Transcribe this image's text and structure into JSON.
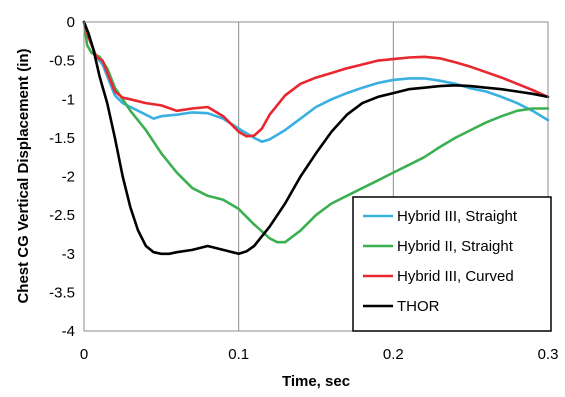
{
  "chart_data": {
    "type": "line",
    "title": "",
    "xlabel": "Time, sec",
    "ylabel": "Chest CG Vertical Displacement  (in)",
    "xlim": [
      0,
      0.3
    ],
    "ylim": [
      -4,
      0
    ],
    "xticks": [
      0,
      0.1,
      0.2,
      0.3
    ],
    "yticks": [
      0,
      -0.5,
      -1,
      -1.5,
      -2,
      -2.5,
      -3,
      -3.5,
      -4
    ],
    "xtick_labels": [
      "0",
      "0.1",
      "0.2",
      "0.3"
    ],
    "ytick_labels": [
      "0",
      "-0.5",
      "-1",
      "-1.5",
      "-2",
      "-2.5",
      "-3",
      "-3.5",
      "-4"
    ],
    "grid": "vertical",
    "legend_position": "bottom-right",
    "series": [
      {
        "name": "Hybrid III, Straight",
        "color": "#3ab0e2",
        "x": [
          0,
          0.003,
          0.008,
          0.012,
          0.016,
          0.02,
          0.025,
          0.03,
          0.035,
          0.04,
          0.045,
          0.05,
          0.06,
          0.07,
          0.08,
          0.09,
          0.1,
          0.11,
          0.115,
          0.12,
          0.13,
          0.14,
          0.15,
          0.16,
          0.17,
          0.18,
          0.19,
          0.2,
          0.21,
          0.22,
          0.23,
          0.24,
          0.25,
          0.26,
          0.27,
          0.28,
          0.29,
          0.3
        ],
        "y": [
          0,
          -0.2,
          -0.45,
          -0.55,
          -0.75,
          -0.95,
          -1.05,
          -1.1,
          -1.15,
          -1.2,
          -1.25,
          -1.22,
          -1.2,
          -1.17,
          -1.18,
          -1.25,
          -1.38,
          -1.5,
          -1.55,
          -1.52,
          -1.4,
          -1.25,
          -1.1,
          -1.0,
          -0.92,
          -0.85,
          -0.79,
          -0.75,
          -0.73,
          -0.73,
          -0.76,
          -0.8,
          -0.86,
          -0.9,
          -0.97,
          -1.05,
          -1.15,
          -1.27
        ]
      },
      {
        "name": "Hybrid II, Straight",
        "color": "#3cb050",
        "x": [
          0,
          0.002,
          0.005,
          0.01,
          0.015,
          0.02,
          0.025,
          0.03,
          0.04,
          0.05,
          0.06,
          0.07,
          0.08,
          0.09,
          0.1,
          0.11,
          0.12,
          0.125,
          0.13,
          0.14,
          0.15,
          0.16,
          0.17,
          0.18,
          0.19,
          0.2,
          0.21,
          0.22,
          0.23,
          0.24,
          0.25,
          0.26,
          0.27,
          0.28,
          0.29,
          0.3
        ],
        "y": [
          0,
          -0.3,
          -0.4,
          -0.45,
          -0.6,
          -0.85,
          -1.0,
          -1.15,
          -1.4,
          -1.7,
          -1.95,
          -2.15,
          -2.25,
          -2.3,
          -2.42,
          -2.62,
          -2.8,
          -2.85,
          -2.85,
          -2.7,
          -2.5,
          -2.35,
          -2.25,
          -2.15,
          -2.05,
          -1.95,
          -1.85,
          -1.75,
          -1.62,
          -1.5,
          -1.4,
          -1.3,
          -1.22,
          -1.15,
          -1.12,
          -1.12
        ]
      },
      {
        "name": "Hybrid III, Curved",
        "color": "#e8282e",
        "x": [
          0,
          0.003,
          0.008,
          0.012,
          0.016,
          0.02,
          0.025,
          0.03,
          0.04,
          0.05,
          0.06,
          0.07,
          0.08,
          0.09,
          0.1,
          0.105,
          0.11,
          0.115,
          0.12,
          0.13,
          0.14,
          0.15,
          0.16,
          0.17,
          0.18,
          0.19,
          0.2,
          0.21,
          0.22,
          0.23,
          0.24,
          0.25,
          0.26,
          0.27,
          0.28,
          0.29,
          0.3
        ],
        "y": [
          0,
          -0.2,
          -0.45,
          -0.5,
          -0.7,
          -0.9,
          -0.98,
          -1.0,
          -1.05,
          -1.08,
          -1.15,
          -1.12,
          -1.1,
          -1.22,
          -1.42,
          -1.48,
          -1.47,
          -1.38,
          -1.2,
          -0.95,
          -0.8,
          -0.72,
          -0.66,
          -0.6,
          -0.55,
          -0.5,
          -0.48,
          -0.46,
          -0.45,
          -0.47,
          -0.52,
          -0.58,
          -0.65,
          -0.72,
          -0.8,
          -0.88,
          -0.97
        ]
      },
      {
        "name": "THOR",
        "color": "#000000",
        "x": [
          0,
          0.003,
          0.006,
          0.01,
          0.015,
          0.02,
          0.025,
          0.03,
          0.035,
          0.04,
          0.045,
          0.05,
          0.055,
          0.06,
          0.07,
          0.08,
          0.09,
          0.1,
          0.105,
          0.11,
          0.12,
          0.13,
          0.14,
          0.15,
          0.16,
          0.17,
          0.18,
          0.19,
          0.2,
          0.21,
          0.22,
          0.23,
          0.24,
          0.25,
          0.26,
          0.27,
          0.28,
          0.29,
          0.3
        ],
        "y": [
          0,
          -0.15,
          -0.35,
          -0.7,
          -1.05,
          -1.5,
          -2.0,
          -2.4,
          -2.7,
          -2.9,
          -2.98,
          -3.0,
          -3.0,
          -2.98,
          -2.95,
          -2.9,
          -2.95,
          -3.0,
          -2.97,
          -2.9,
          -2.65,
          -2.35,
          -2.0,
          -1.7,
          -1.42,
          -1.2,
          -1.05,
          -0.97,
          -0.92,
          -0.87,
          -0.85,
          -0.83,
          -0.82,
          -0.83,
          -0.85,
          -0.87,
          -0.9,
          -0.93,
          -0.97
        ]
      }
    ]
  }
}
